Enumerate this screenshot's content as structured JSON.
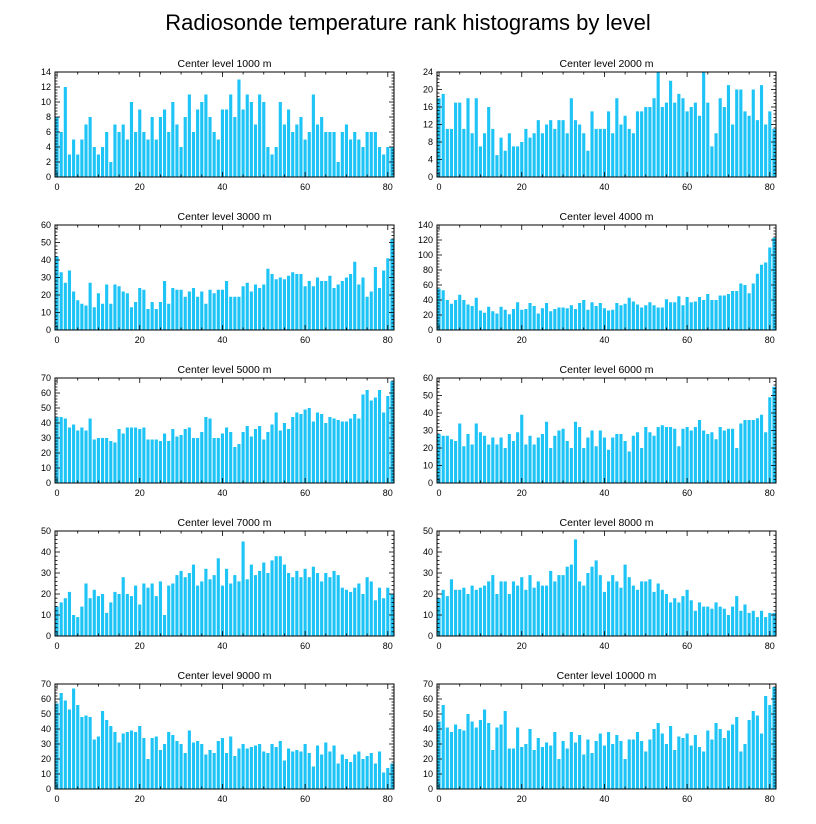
{
  "title": "Radiosonde temperature rank histograms by level",
  "colors": {
    "bar": "#1ec4f6",
    "axis": "#000000",
    "background": "#ffffff"
  },
  "chart_data": [
    {
      "type": "bar",
      "title": "Center level 1000 m",
      "xlim": [
        -0.5,
        81.5
      ],
      "ylim": [
        0,
        14
      ],
      "xticks": [
        0,
        20,
        40,
        60,
        80
      ],
      "yticks": [
        0,
        2,
        4,
        6,
        8,
        10,
        12,
        14
      ],
      "values": [
        8,
        6,
        12,
        3,
        5,
        3,
        5,
        7,
        8,
        4,
        3,
        4,
        6,
        2,
        7,
        6,
        7,
        5,
        10,
        6,
        9,
        6,
        5,
        8,
        5,
        8,
        9,
        6,
        10,
        7,
        4,
        8,
        11,
        6,
        9,
        10,
        11,
        8,
        6,
        5,
        9,
        9,
        11,
        8,
        13,
        9,
        11,
        10,
        7,
        11,
        10,
        4,
        3,
        4,
        10,
        7,
        9,
        6,
        7,
        8,
        5,
        6,
        11,
        7,
        8,
        6,
        6,
        6,
        2,
        6,
        7,
        5,
        6,
        5,
        4,
        6,
        6,
        6,
        4,
        3,
        4,
        4
      ]
    },
    {
      "type": "bar",
      "title": "Center level 2000 m",
      "xlim": [
        -0.5,
        81.5
      ],
      "ylim": [
        0,
        24
      ],
      "xticks": [
        0,
        20,
        40,
        60,
        80
      ],
      "yticks": [
        0,
        4,
        8,
        12,
        16,
        20,
        24
      ],
      "values": [
        18,
        19,
        11,
        11,
        17,
        17,
        11,
        18,
        10,
        18,
        7,
        10,
        16,
        11,
        5,
        9,
        6,
        10,
        7,
        7,
        8,
        11,
        9,
        10,
        13,
        10,
        12,
        13,
        11,
        13,
        13,
        10,
        18,
        13,
        12,
        10,
        6,
        15,
        11,
        11,
        11,
        15,
        10,
        18,
        12,
        14,
        11,
        10,
        15,
        15,
        16,
        16,
        18,
        24,
        16,
        17,
        22,
        17,
        19,
        18,
        15,
        16,
        17,
        14,
        24,
        17,
        7,
        10,
        18,
        16,
        21,
        12,
        20,
        20,
        15,
        14,
        20,
        13,
        21,
        12,
        15,
        11
      ]
    },
    {
      "type": "bar",
      "title": "Center level 3000 m",
      "xlim": [
        -0.5,
        81.5
      ],
      "ylim": [
        0,
        60
      ],
      "xticks": [
        0,
        20,
        40,
        60,
        80
      ],
      "yticks": [
        0,
        10,
        20,
        30,
        40,
        50,
        60
      ],
      "values": [
        42,
        33,
        27,
        34,
        22,
        17,
        15,
        14,
        27,
        13,
        21,
        15,
        26,
        15,
        26,
        25,
        22,
        21,
        13,
        16,
        24,
        23,
        12,
        16,
        12,
        16,
        28,
        15,
        24,
        23,
        23,
        19,
        22,
        24,
        19,
        22,
        15,
        23,
        21,
        23,
        23,
        28,
        19,
        19,
        19,
        25,
        27,
        22,
        26,
        24,
        26,
        35,
        32,
        29,
        30,
        29,
        31,
        33,
        32,
        32,
        25,
        28,
        25,
        30,
        28,
        28,
        31,
        24,
        26,
        28,
        30,
        32,
        39,
        26,
        30,
        19,
        22,
        36,
        24,
        34,
        41,
        52
      ]
    },
    {
      "type": "bar",
      "title": "Center level 4000 m",
      "xlim": [
        -0.5,
        81.5
      ],
      "ylim": [
        0,
        140
      ],
      "xticks": [
        0,
        20,
        40,
        60,
        80
      ],
      "yticks": [
        0,
        20,
        40,
        60,
        80,
        100,
        120,
        140
      ],
      "values": [
        55,
        53,
        40,
        35,
        40,
        47,
        40,
        34,
        32,
        43,
        26,
        23,
        31,
        25,
        22,
        31,
        27,
        21,
        28,
        37,
        27,
        28,
        36,
        32,
        22,
        29,
        36,
        25,
        28,
        30,
        30,
        29,
        33,
        28,
        36,
        40,
        27,
        37,
        32,
        36,
        29,
        26,
        27,
        36,
        33,
        35,
        43,
        38,
        34,
        30,
        33,
        37,
        33,
        30,
        30,
        41,
        37,
        37,
        45,
        33,
        44,
        37,
        38,
        44,
        40,
        48,
        40,
        40,
        46,
        46,
        48,
        52,
        52,
        62,
        60,
        49,
        62,
        75,
        87,
        90,
        110,
        123
      ]
    },
    {
      "type": "bar",
      "title": "Center level 5000 m",
      "xlim": [
        -0.5,
        81.5
      ],
      "ylim": [
        0,
        70
      ],
      "xticks": [
        0,
        20,
        40,
        60,
        80
      ],
      "yticks": [
        0,
        10,
        20,
        30,
        40,
        50,
        60,
        70
      ],
      "values": [
        44,
        44,
        43,
        37,
        39,
        35,
        37,
        35,
        43,
        29,
        30,
        30,
        30,
        28,
        27,
        36,
        33,
        37,
        37,
        37,
        36,
        37,
        29,
        29,
        29,
        28,
        33,
        28,
        36,
        31,
        32,
        36,
        37,
        30,
        30,
        34,
        44,
        43,
        30,
        30,
        33,
        37,
        34,
        24,
        26,
        34,
        38,
        31,
        36,
        38,
        29,
        34,
        39,
        47,
        35,
        40,
        36,
        44,
        47,
        46,
        49,
        50,
        41,
        47,
        46,
        40,
        44,
        43,
        42,
        41,
        41,
        43,
        46,
        43,
        59,
        62,
        55,
        57,
        62,
        47,
        58,
        68
      ]
    },
    {
      "type": "bar",
      "title": "Center level 6000 m",
      "xlim": [
        -0.5,
        81.5
      ],
      "ylim": [
        0,
        60
      ],
      "xticks": [
        0,
        20,
        40,
        60,
        80
      ],
      "yticks": [
        0,
        10,
        20,
        30,
        40,
        50,
        60
      ],
      "values": [
        28,
        27,
        27,
        25,
        24,
        34,
        21,
        28,
        22,
        34,
        29,
        27,
        22,
        26,
        22,
        26,
        20,
        28,
        24,
        29,
        39,
        22,
        27,
        22,
        26,
        28,
        35,
        20,
        27,
        30,
        31,
        24,
        20,
        35,
        32,
        20,
        26,
        30,
        21,
        30,
        26,
        19,
        26,
        28,
        28,
        24,
        18,
        27,
        29,
        20,
        32,
        29,
        27,
        32,
        33,
        32,
        32,
        31,
        21,
        31,
        32,
        30,
        32,
        36,
        30,
        28,
        29,
        25,
        32,
        30,
        31,
        31,
        20,
        34,
        36,
        36,
        36,
        37,
        39,
        29,
        49,
        55
      ]
    },
    {
      "type": "bar",
      "title": "Center level 7000 m",
      "xlim": [
        -0.5,
        81.5
      ],
      "ylim": [
        0,
        50
      ],
      "xticks": [
        0,
        20,
        40,
        60,
        80
      ],
      "yticks": [
        0,
        10,
        20,
        30,
        40,
        50
      ],
      "values": [
        14,
        16,
        18,
        21,
        10,
        9,
        14,
        25,
        18,
        22,
        19,
        20,
        11,
        16,
        21,
        20,
        28,
        20,
        19,
        24,
        15,
        25,
        23,
        25,
        19,
        26,
        10,
        24,
        25,
        29,
        31,
        28,
        30,
        34,
        24,
        26,
        32,
        27,
        29,
        37,
        24,
        32,
        25,
        29,
        26,
        45,
        27,
        34,
        29,
        31,
        35,
        30,
        36,
        38,
        38,
        34,
        30,
        28,
        31,
        28,
        32,
        28,
        33,
        30,
        26,
        30,
        28,
        31,
        29,
        23,
        22,
        21,
        23,
        25,
        20,
        28,
        26,
        17,
        23,
        18,
        23,
        20
      ]
    },
    {
      "type": "bar",
      "title": "Center level 8000 m",
      "xlim": [
        -0.5,
        81.5
      ],
      "ylim": [
        0,
        50
      ],
      "xticks": [
        0,
        20,
        40,
        60,
        80
      ],
      "yticks": [
        0,
        10,
        20,
        30,
        40,
        50
      ],
      "values": [
        18,
        22,
        19,
        27,
        22,
        22,
        23,
        20,
        24,
        22,
        23,
        24,
        26,
        29,
        20,
        26,
        26,
        20,
        26,
        24,
        28,
        22,
        29,
        23,
        26,
        24,
        24,
        31,
        26,
        29,
        29,
        33,
        34,
        46,
        26,
        24,
        30,
        33,
        36,
        29,
        21,
        26,
        29,
        26,
        23,
        34,
        28,
        24,
        22,
        26,
        26,
        27,
        21,
        25,
        22,
        20,
        16,
        18,
        16,
        19,
        22,
        17,
        12,
        16,
        14,
        14,
        13,
        16,
        14,
        13,
        10,
        14,
        19,
        12,
        15,
        11,
        12,
        9,
        12,
        9,
        11,
        11
      ]
    },
    {
      "type": "bar",
      "title": "Center level 9000 m",
      "xlim": [
        -0.5,
        81.5
      ],
      "ylim": [
        0,
        70
      ],
      "xticks": [
        0,
        20,
        40,
        60,
        80
      ],
      "yticks": [
        0,
        10,
        20,
        30,
        40,
        50,
        60,
        70
      ],
      "values": [
        57,
        64,
        59,
        53,
        67,
        56,
        48,
        49,
        48,
        33,
        35,
        52,
        46,
        42,
        38,
        31,
        37,
        38,
        39,
        38,
        42,
        34,
        20,
        34,
        35,
        26,
        30,
        38,
        36,
        32,
        30,
        24,
        39,
        31,
        32,
        30,
        23,
        26,
        24,
        32,
        34,
        24,
        35,
        22,
        27,
        30,
        27,
        28,
        29,
        30,
        25,
        24,
        30,
        28,
        32,
        19,
        27,
        25,
        26,
        25,
        30,
        24,
        15,
        29,
        23,
        31,
        25,
        29,
        17,
        23,
        20,
        18,
        23,
        25,
        20,
        22,
        24,
        17,
        25,
        11,
        14,
        17
      ]
    },
    {
      "type": "bar",
      "title": "Center level 10000 m",
      "xlim": [
        -0.5,
        81.5
      ],
      "ylim": [
        0,
        70
      ],
      "xticks": [
        0,
        20,
        40,
        60,
        80
      ],
      "yticks": [
        0,
        10,
        20,
        30,
        40,
        50,
        60,
        70
      ],
      "values": [
        45,
        56,
        41,
        38,
        43,
        40,
        39,
        50,
        45,
        41,
        46,
        53,
        44,
        26,
        41,
        43,
        52,
        27,
        27,
        41,
        28,
        30,
        40,
        26,
        34,
        28,
        31,
        29,
        38,
        20,
        32,
        27,
        38,
        31,
        36,
        23,
        33,
        24,
        32,
        37,
        29,
        38,
        30,
        36,
        32,
        20,
        33,
        33,
        38,
        32,
        25,
        33,
        40,
        44,
        37,
        30,
        42,
        26,
        35,
        34,
        37,
        29,
        36,
        28,
        25,
        39,
        33,
        44,
        40,
        34,
        39,
        43,
        48,
        25,
        30,
        46,
        52,
        49,
        37,
        62,
        56,
        68
      ]
    }
  ]
}
